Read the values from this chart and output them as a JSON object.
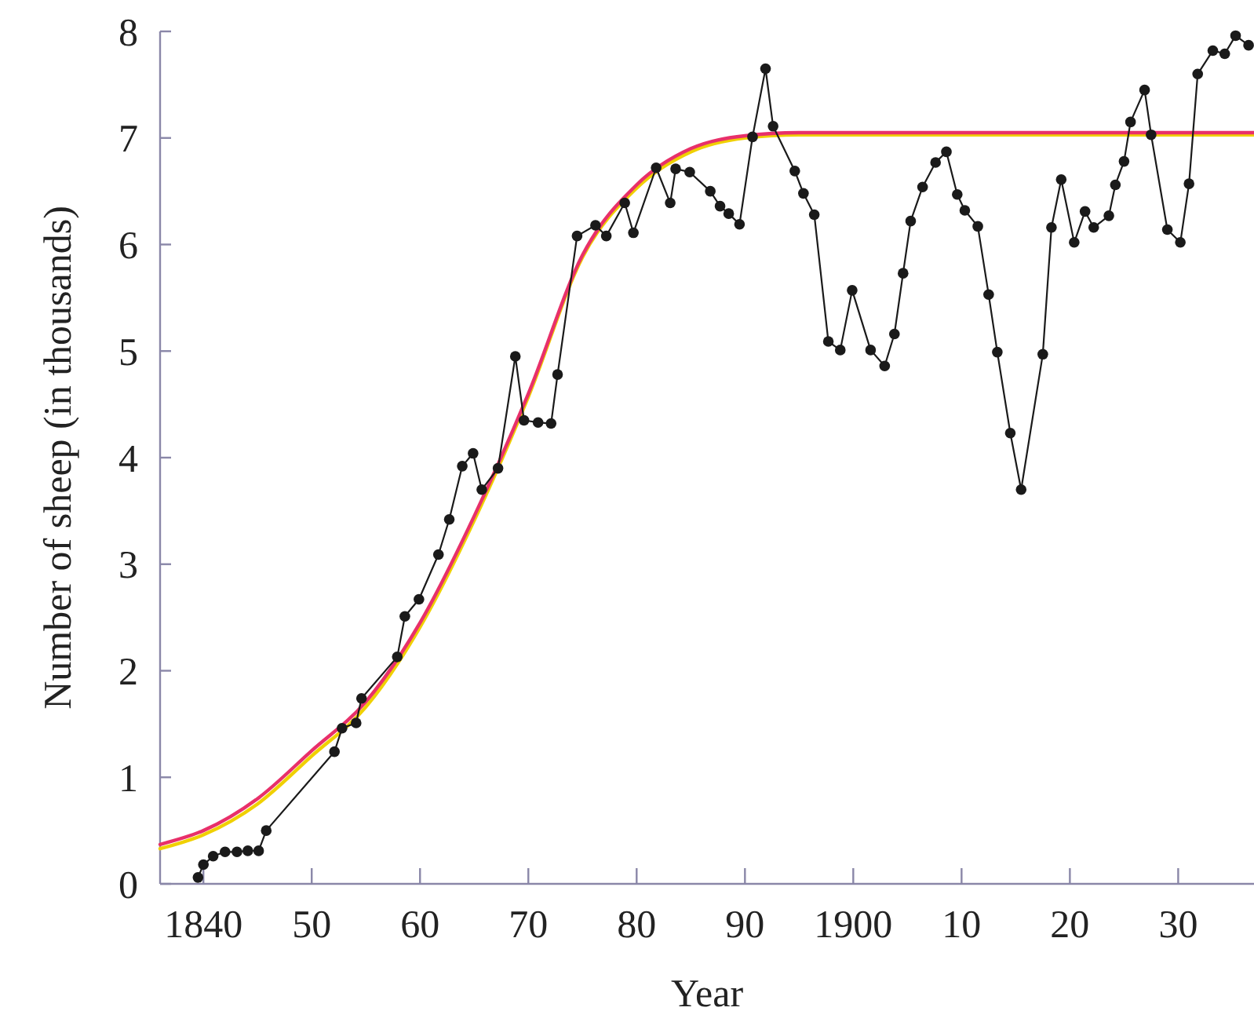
{
  "chart_data": {
    "type": "line",
    "xlabel": "Year",
    "ylabel": "Number of sheep (in thousands)",
    "xlim": [
      1836,
      1937
    ],
    "ylim": [
      0,
      8
    ],
    "xticks": [
      1840,
      {
        "value": 1850,
        "label": "50"
      },
      {
        "value": 1860,
        "label": "60"
      },
      {
        "value": 1870,
        "label": "70"
      },
      {
        "value": 1880,
        "label": "80"
      },
      {
        "value": 1890,
        "label": "90"
      },
      1900,
      {
        "value": 1910,
        "label": "10"
      },
      {
        "value": 1920,
        "label": "20"
      },
      {
        "value": 1930,
        "label": "30"
      }
    ],
    "yticks": [
      0,
      1,
      2,
      3,
      4,
      5,
      6,
      7,
      8
    ],
    "grid": false,
    "line_style": "solid",
    "series": [
      {
        "color": "#f0d000",
        "marker": "none",
        "x": [
          1836,
          1840,
          1845,
          1850,
          1855,
          1860,
          1865,
          1870,
          1875,
          1880,
          1885,
          1890,
          1895,
          1937
        ],
        "values": [
          0.33,
          0.46,
          0.75,
          1.2,
          1.66,
          2.41,
          3.41,
          4.57,
          5.88,
          6.53,
          6.87,
          7.0,
          7.03,
          7.03
        ]
      },
      {
        "color": "#e8306a",
        "marker": "none",
        "x": [
          1836,
          1840,
          1845,
          1850,
          1855,
          1860,
          1865,
          1870,
          1875,
          1880,
          1885,
          1890,
          1895,
          1937
        ],
        "values": [
          0.37,
          0.5,
          0.8,
          1.25,
          1.71,
          2.45,
          3.45,
          4.6,
          5.9,
          6.56,
          6.9,
          7.02,
          7.05,
          7.05
        ]
      },
      {
        "color": "#1a1a1a",
        "marker": "circle",
        "x": [
          1839.5,
          1840,
          1840.9,
          1842,
          1843.1,
          1844.1,
          1845.1,
          1845.8,
          1852.1,
          1852.8,
          1854.1,
          1854.6,
          1857.9,
          1858.6,
          1859.9,
          1861.7,
          1862.7,
          1863.9,
          1864.9,
          1865.7,
          1867.2,
          1868.8,
          1869.6,
          1870.9,
          1872.1,
          1872.7,
          1874.5,
          1876.2,
          1877.2,
          1878.9,
          1879.7,
          1881.8,
          1883.1,
          1883.6,
          1884.9,
          1886.8,
          1887.7,
          1888.5,
          1889.5,
          1890.7,
          1891.9,
          1892.6,
          1894.6,
          1895.4,
          1896.4,
          1897.7,
          1898.8,
          1899.9,
          1901.6,
          1902.9,
          1903.8,
          1904.6,
          1905.3,
          1906.4,
          1907.6,
          1908.6,
          1909.6,
          1910.3,
          1911.5,
          1912.5,
          1913.3,
          1914.5,
          1915.5,
          1917.5,
          1918.3,
          1919.2,
          1920.4,
          1921.4,
          1922.2,
          1923.6,
          1924.2,
          1925.0,
          1925.6,
          1926.9,
          1927.5,
          1929.0,
          1930.2,
          1931.0,
          1931.8,
          1933.2,
          1934.3,
          1935.3,
          1936.5
        ],
        "values": [
          0.06,
          0.18,
          0.26,
          0.3,
          0.3,
          0.31,
          0.31,
          0.5,
          1.24,
          1.46,
          1.51,
          1.74,
          2.13,
          2.51,
          2.67,
          3.09,
          3.42,
          3.92,
          4.04,
          3.7,
          3.9,
          4.95,
          4.35,
          4.33,
          4.32,
          4.78,
          6.08,
          6.18,
          6.08,
          6.39,
          6.11,
          6.72,
          6.39,
          6.71,
          6.68,
          6.5,
          6.36,
          6.29,
          6.19,
          7.01,
          7.65,
          7.11,
          6.69,
          6.48,
          6.28,
          5.09,
          5.01,
          5.57,
          5.01,
          4.86,
          5.16,
          5.73,
          6.22,
          6.54,
          6.77,
          6.87,
          6.47,
          6.32,
          6.17,
          5.53,
          4.99,
          4.23,
          3.7,
          4.97,
          6.16,
          6.61,
          6.02,
          6.31,
          6.16,
          6.27,
          6.56,
          6.78,
          7.15,
          7.45,
          7.03,
          6.14,
          6.02,
          6.57,
          7.6,
          7.82,
          7.79,
          7.96,
          7.87
        ]
      }
    ]
  }
}
